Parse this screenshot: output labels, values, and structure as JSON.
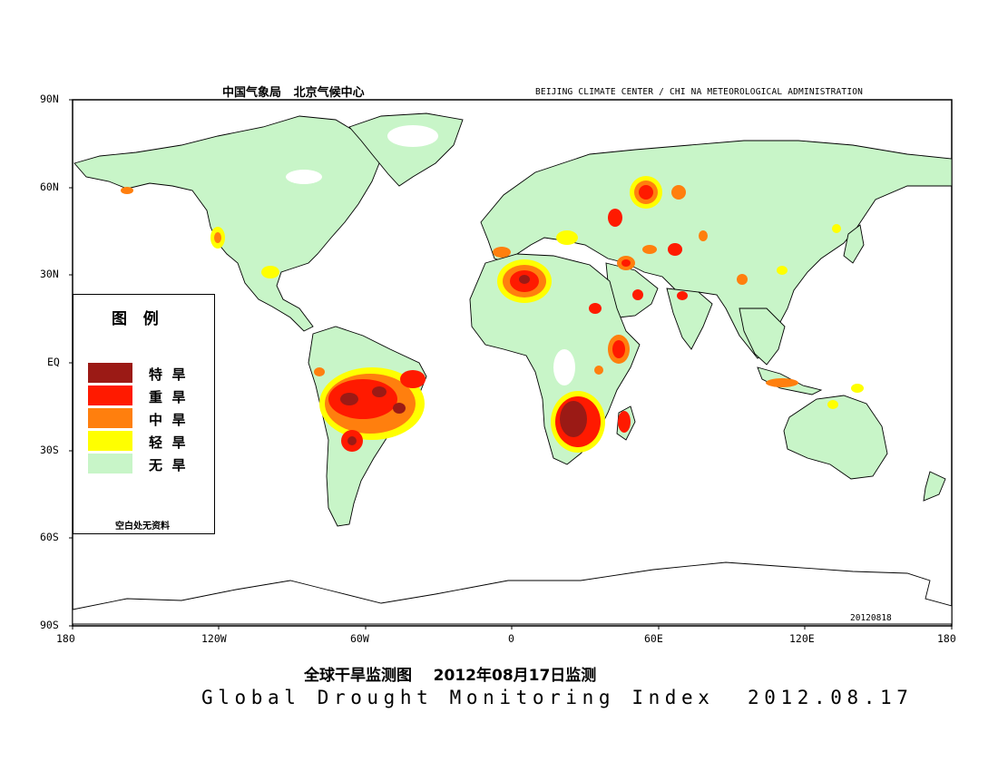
{
  "header": {
    "left": "中国气象局   北京气候中心",
    "right": "BEIJING CLIMATE CENTER / CHI NA METEOROLOGICAL ADMINISTRATION"
  },
  "axes": {
    "y_ticks": [
      "90N",
      "60N",
      "30N",
      "EQ",
      "30S",
      "60S",
      "90S"
    ],
    "x_ticks": [
      "180",
      "120W",
      "60W",
      "0",
      "60E",
      "120E",
      "180"
    ]
  },
  "datestamp": "20120818",
  "legend": {
    "title": "图   例",
    "items": [
      {
        "label": "特  旱",
        "color": "#9b1a15"
      },
      {
        "label": "重  旱",
        "color": "#ff1a00"
      },
      {
        "label": "中  旱",
        "color": "#ff7f0e"
      },
      {
        "label": "轻  旱",
        "color": "#ffff00"
      },
      {
        "label": "无  旱",
        "color": "#c8f5c8"
      }
    ],
    "note": "空白处无资料"
  },
  "colors": {
    "no_drought": "#c8f5c8",
    "light": "#ffff00",
    "moderate": "#ff7f0e",
    "severe": "#ff1a00",
    "extreme": "#9b1a15",
    "no_data": "#ffffff",
    "coast": "#000000"
  },
  "title": {
    "cn": "全球干旱监测图    2012年08月17日监测",
    "en": "Global Drought Monitoring Index  2012.08.17"
  }
}
